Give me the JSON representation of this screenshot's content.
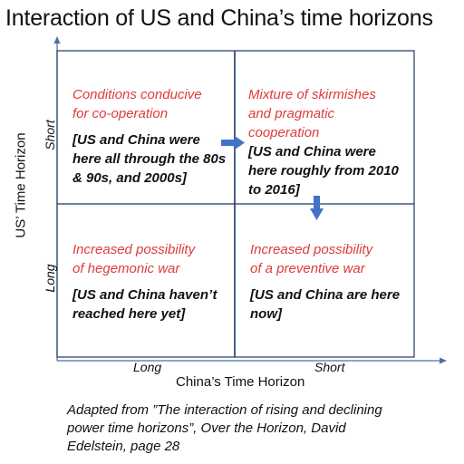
{
  "title": "Interaction of US and China’s time horizons",
  "y_axis": {
    "label": "US’ Time Horizon",
    "tick_top": "Short",
    "tick_bottom": "Long"
  },
  "x_axis": {
    "label": "China’s Time Horizon",
    "tick_left": "Long",
    "tick_right": "Short"
  },
  "quadrants": {
    "top_left": {
      "heading": [
        "Conditions conducive",
        "for co-operation"
      ],
      "note": [
        "[US and China were",
        "here all through the 80s",
        "& 90s, and 2000s]"
      ]
    },
    "top_right": {
      "heading": [
        "Mixture of skirmishes",
        "and pragmatic",
        "cooperation"
      ],
      "note": [
        "[US and China were",
        "here roughly from 2010",
        "to 2016]"
      ]
    },
    "bottom_left": {
      "heading": [
        "Increased possibility",
        "of hegemonic war"
      ],
      "note": [
        "[US and China haven’t",
        "reached here yet]"
      ]
    },
    "bottom_right": {
      "heading": [
        "Increased possibility",
        "of a preventive war"
      ],
      "note": [
        "[US and China are here",
        "now]"
      ]
    }
  },
  "caption": [
    "Adapted from ”The interaction of rising and declining",
    "power time horizons”, Over the Horizon, David",
    "Edelstein, page 28"
  ],
  "colors": {
    "heading": "#e03a3a",
    "arrow": "#4472c4",
    "axis": "#4a6fa5",
    "grid": "#1f3864"
  }
}
